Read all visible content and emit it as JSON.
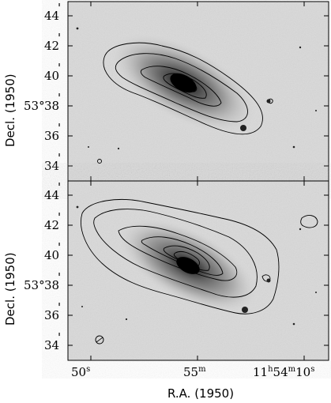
{
  "figure": {
    "panels": [
      {
        "name": "top-panel",
        "y_ticks": [
          "44",
          "42",
          "40",
          "38",
          "36",
          "34"
        ],
        "y_tick_values_arcmin": [
          44,
          42,
          40,
          38,
          36,
          34
        ],
        "dec_degree_label": "53°",
        "y_axis_title": "Decl. (1950)"
      },
      {
        "name": "bottom-panel",
        "y_ticks": [
          "44",
          "42",
          "40",
          "38",
          "36",
          "34"
        ],
        "y_tick_values_arcmin": [
          44,
          42,
          40,
          38,
          36,
          34
        ],
        "dec_degree_label": "53°",
        "y_axis_title": "Decl. (1950)"
      }
    ],
    "x_ticks": [
      {
        "main": "50",
        "sup": "s"
      },
      {
        "main": "55",
        "sup": "m"
      },
      {
        "main": "11",
        "sup": "h",
        "main2": "54",
        "sup2": "m",
        "main3": "10",
        "sup3": "s"
      }
    ],
    "x_axis_title": "R.A. (1950)",
    "colors": {
      "frame": "#000000",
      "background": "#d9d9d9",
      "contour": "#000000"
    }
  }
}
